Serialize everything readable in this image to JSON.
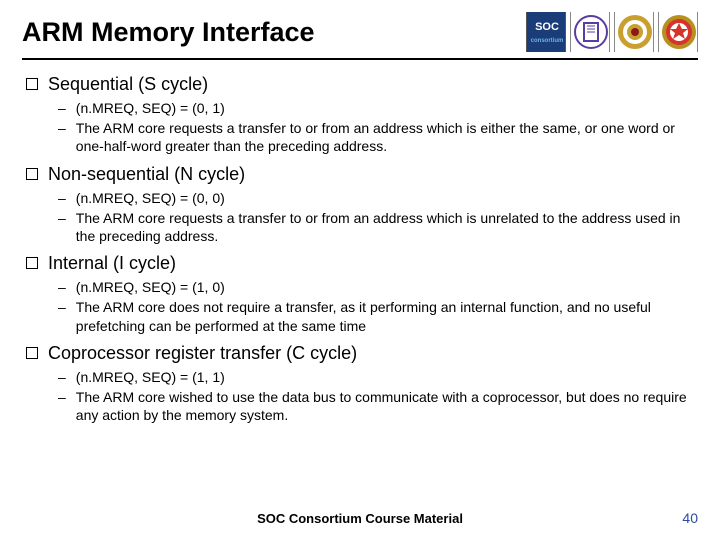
{
  "title": "ARM Memory Interface",
  "logos": [
    {
      "name": "soc-logo",
      "label": "SOC",
      "cls": "logo-soc",
      "svg": "soc"
    },
    {
      "name": "purple-logo",
      "label": "",
      "cls": "logo-purple",
      "svg": "purple"
    },
    {
      "name": "gold-seal-1",
      "label": "",
      "cls": "logo-gold1",
      "svg": "gold1"
    },
    {
      "name": "gold-seal-2",
      "label": "",
      "cls": "logo-gold2",
      "svg": "gold2"
    }
  ],
  "sections": [
    {
      "heading": "Sequential (S cycle)",
      "items": [
        "(n.MREQ, SEQ) = (0, 1)",
        "The ARM core requests a transfer to or from an address which is either the same, or one word or one-half-word greater than the preceding address."
      ]
    },
    {
      "heading": "Non-sequential (N cycle)",
      "items": [
        "(n.MREQ, SEQ) = (0, 0)",
        "The ARM core requests a transfer to or from an address which is unrelated to the address used in  the preceding address."
      ]
    },
    {
      "heading": "Internal (I cycle)",
      "items": [
        "(n.MREQ, SEQ) = (1, 0)",
        "The ARM core does not require a transfer, as it performing an internal function, and no useful prefetching can be performed at the same time"
      ]
    },
    {
      "heading": "Coprocessor register transfer (C cycle)",
      "items": [
        "(n.MREQ, SEQ) = (1, 1)",
        "The ARM core wished to use the data bus to communicate with a coprocessor, but does no require any action by the memory system."
      ]
    }
  ],
  "footer": "SOC Consortium Course Material",
  "page": "40"
}
